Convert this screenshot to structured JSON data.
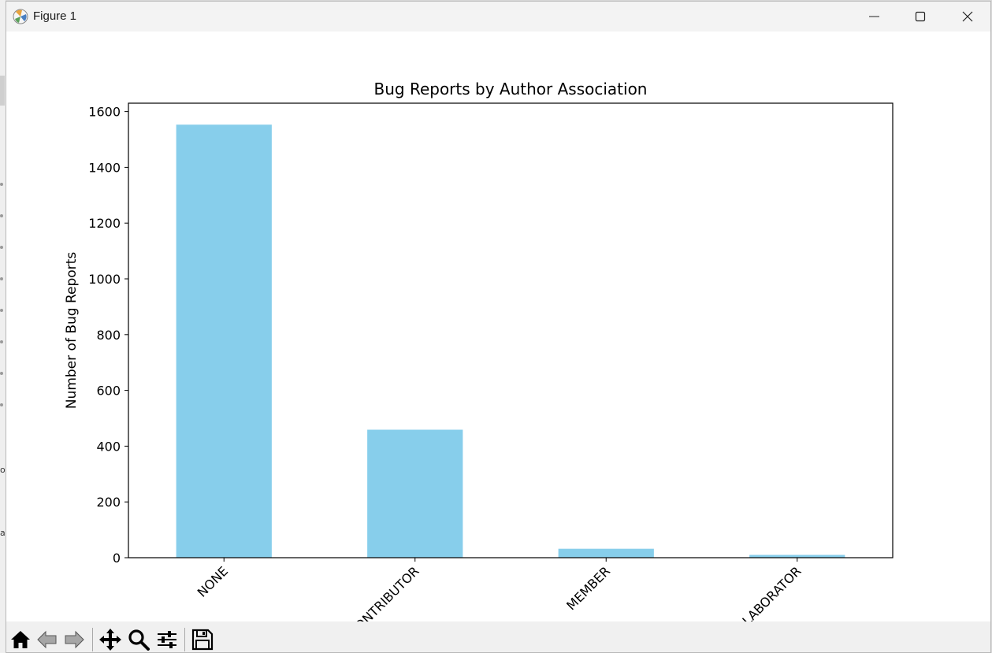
{
  "window": {
    "title": "Figure 1",
    "app_icon": "matplotlib-figure-icon",
    "controls": [
      "minimize-icon",
      "maximize-icon",
      "close-icon"
    ]
  },
  "toolbar": {
    "buttons": [
      {
        "name": "home-button",
        "icon": "home-icon"
      },
      {
        "name": "back-button",
        "icon": "arrow-left-icon"
      },
      {
        "name": "forward-button",
        "icon": "arrow-right-icon"
      },
      {
        "name": "pan-button",
        "icon": "move-icon"
      },
      {
        "name": "zoom-button",
        "icon": "magnifier-icon"
      },
      {
        "name": "configure-subplots-button",
        "icon": "sliders-icon"
      },
      {
        "name": "save-button",
        "icon": "floppy-disk-icon"
      }
    ]
  },
  "background_fragments": [
    "o",
    "al"
  ],
  "chart_data": {
    "type": "bar",
    "title": "Bug Reports by Author Association",
    "xlabel": "",
    "ylabel": "Number of Bug Reports",
    "categories": [
      "NONE",
      "CONTRIBUTOR",
      "MEMBER",
      "COLLABORATOR"
    ],
    "values": [
      1553,
      459,
      32,
      10
    ],
    "ylim": [
      0,
      1630
    ],
    "yticks": [
      0,
      200,
      400,
      600,
      800,
      1000,
      1200,
      1400,
      1600
    ],
    "bar_color": "#87ceeb",
    "grid": false,
    "legend": "none",
    "xtick_rotation": 45
  }
}
